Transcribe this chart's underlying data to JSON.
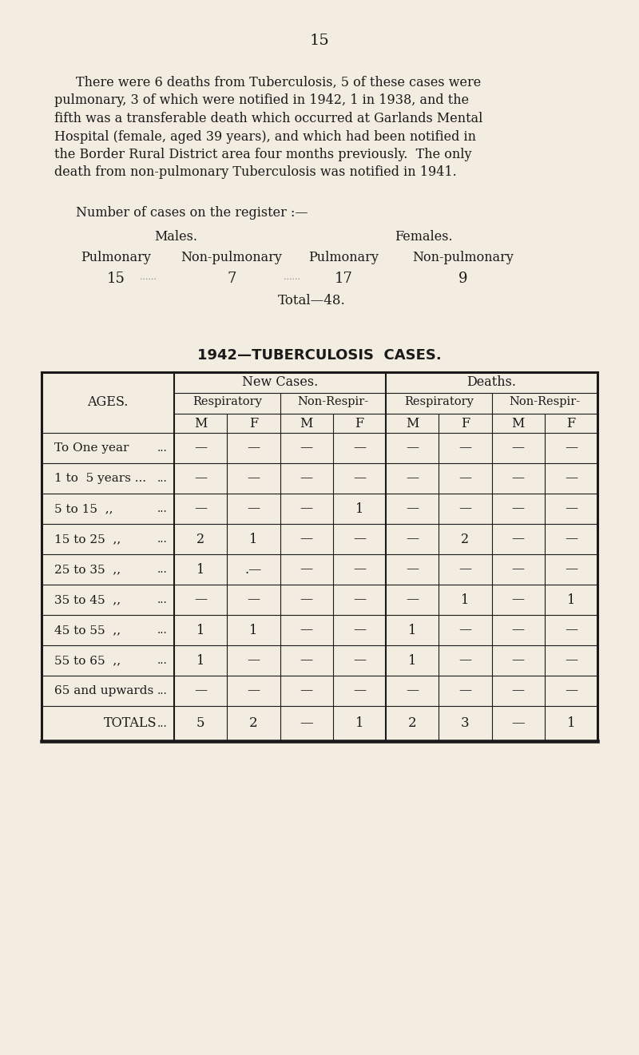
{
  "bg_color": "#f2ede0",
  "text_color": "#1a1a1a",
  "page_number": "15",
  "paragraph_line1": "There were 6 deaths from Tuberculosis, 5 of these cases were",
  "paragraph_line2": "pulmonary, 3 of which were notified in 1942, 1 in 1938, and the",
  "paragraph_line3": "fifth was a transferable death which occurred at Garlands Mental",
  "paragraph_line4": "Hospital (female, aged 39 years), and which had been notified in",
  "paragraph_line5": "the Border Rural District area four months previously.  The only",
  "paragraph_line6": "death from non-pulmonary Tuberculosis was notified in 1941.",
  "register_header": "Number of cases on the register :—",
  "males_label": "Males.",
  "females_label": "Females.",
  "col_headers": [
    "Pulmonary",
    "Non-pulmonary",
    "Pulmonary",
    "Non-pulmonary"
  ],
  "col_values": [
    "15",
    "7",
    "17",
    "9"
  ],
  "total_label": "Total—48.",
  "table_title": "1942—TUBERCULOSIS  CASES.",
  "table_col_groups": [
    "New Cases.",
    "Deaths."
  ],
  "table_sub_groups": [
    "Respiratory",
    "Non-Respir-",
    "Respiratory",
    "Non-Respir-"
  ],
  "table_mf": [
    "M",
    "F",
    "M",
    "F",
    "M",
    "F",
    "M",
    "F"
  ],
  "age_rows": [
    [
      "To One year",
      "   ..."
    ],
    [
      "1 to  5 years ...",
      "   ..."
    ],
    [
      "5 to 15  ,,",
      "   ..."
    ],
    [
      "15 to 25  ,,",
      "   ..."
    ],
    [
      "25 to 35  ,,",
      "   ..."
    ],
    [
      "35 to 45  ,,",
      "   ..."
    ],
    [
      "45 to 55  ,,",
      "   ..."
    ],
    [
      "55 to 65  ,,",
      "   ..."
    ],
    [
      "65 and upwards",
      "   ..."
    ]
  ],
  "table_data": [
    [
      "—",
      "—",
      "—",
      "—",
      "—",
      "—",
      "—",
      "—"
    ],
    [
      "—",
      "—",
      "—",
      "—",
      "—",
      "—",
      "—",
      "—"
    ],
    [
      "—",
      "—",
      "—",
      "1",
      "—",
      "—",
      "—",
      "—"
    ],
    [
      "2",
      "1",
      "—",
      "—",
      "—",
      "2",
      "—",
      "—"
    ],
    [
      "1",
      ".—",
      "—",
      "—",
      "—",
      "—",
      "—",
      "—"
    ],
    [
      "—",
      "—",
      "—",
      "—",
      "—",
      "1",
      "—",
      "1"
    ],
    [
      "1",
      "1",
      "—",
      "—",
      "1",
      "—",
      "—",
      "—"
    ],
    [
      "1",
      "—",
      "—",
      "—",
      "1",
      "—",
      "—",
      "—"
    ],
    [
      "—",
      "—",
      "—",
      "—",
      "—",
      "—",
      "—",
      "—"
    ]
  ],
  "totals_row": [
    "5",
    "2",
    "—",
    "1",
    "2",
    "3",
    "—",
    "1"
  ]
}
